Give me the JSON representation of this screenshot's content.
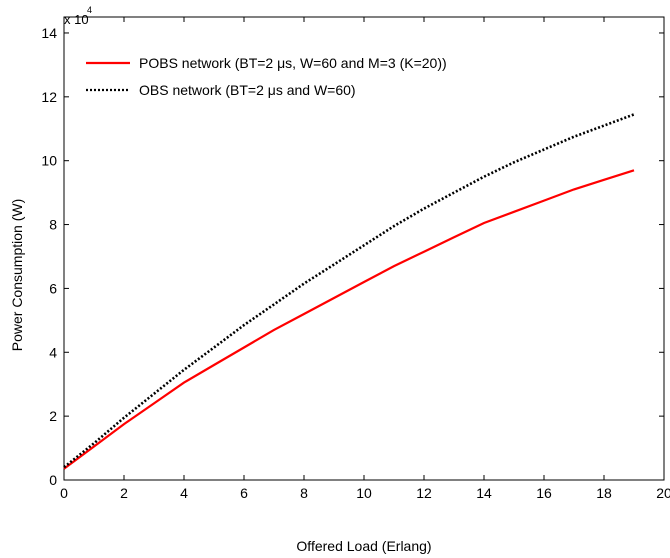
{
  "chart_data": {
    "type": "line",
    "xlabel": "Offered Load (Erlang)",
    "ylabel": "Power Consumption (W)",
    "y_multiplier": {
      "base": "x 10",
      "exponent": "4"
    },
    "xlim": [
      0,
      20
    ],
    "ylim": [
      0,
      145000
    ],
    "x_ticks": [
      0,
      2,
      4,
      6,
      8,
      10,
      12,
      14,
      16,
      18,
      20
    ],
    "x_tick_labels": [
      "0",
      "2",
      "4",
      "6",
      "8",
      "10",
      "12",
      "14",
      "16",
      "18",
      "20"
    ],
    "y_ticks": [
      0,
      20000,
      40000,
      60000,
      80000,
      100000,
      120000,
      140000
    ],
    "y_tick_labels": [
      "0",
      "2",
      "4",
      "6",
      "8",
      "10",
      "12",
      "14"
    ],
    "grid": false,
    "legend_position": "top-left",
    "series": [
      {
        "name": "POBS network (BT=2 μs, W=60 and M=3 (K=20))",
        "color": "#ff0000",
        "style": "solid",
        "x": [
          0,
          1,
          2,
          3,
          4,
          5,
          6,
          7,
          8,
          9,
          10,
          11,
          12,
          13,
          14,
          15,
          16,
          17,
          18,
          19
        ],
        "y": [
          3500,
          10500,
          17500,
          24000,
          30500,
          36000,
          41500,
          47000,
          52000,
          57000,
          62000,
          67000,
          71500,
          76000,
          80500,
          84000,
          87500,
          91000,
          94000,
          97000
        ]
      },
      {
        "name": "OBS network (BT=2 μs and W=60)",
        "color": "#000000",
        "style": "dotted",
        "x": [
          0,
          1,
          2,
          3,
          4,
          5,
          6,
          7,
          8,
          9,
          10,
          11,
          12,
          13,
          14,
          15,
          16,
          17,
          18,
          19
        ],
        "y": [
          4000,
          11500,
          19500,
          27000,
          34500,
          41500,
          48500,
          55000,
          61500,
          67500,
          73500,
          79500,
          85000,
          90000,
          95000,
          99500,
          103500,
          107500,
          111000,
          114500
        ]
      }
    ]
  }
}
